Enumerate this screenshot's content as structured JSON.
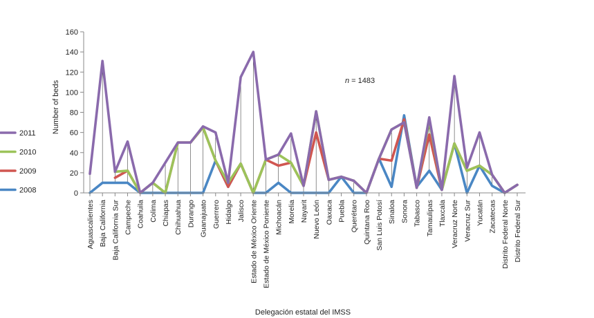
{
  "chart_data": {
    "type": "line",
    "title": "",
    "xlabel": "Delegación estatal del IMSS",
    "ylabel": "Number of beds",
    "ylim": [
      0,
      160
    ],
    "yticks": [
      0,
      20,
      40,
      60,
      80,
      100,
      120,
      140,
      160
    ],
    "annotation": {
      "italic": "n",
      "text": " = 1483"
    },
    "legend_position": "left",
    "grid": false,
    "categories": [
      "Aguascalientes",
      "Baja California",
      "Baja California Sur",
      "Campeche",
      "Coahuila",
      "Colima",
      "Chiapas",
      "Chihuahua",
      "Durango",
      "Guanajuato",
      "Guerrero",
      "Hidalgo",
      "Jalisco",
      "Estado de México Oriente",
      "Estado de México Poniente",
      "Michoacán",
      "Morelia",
      "Nayarit",
      "Nuevo León",
      "Oaxaca",
      "Puebla",
      "Querétaro",
      "Quintana Roo",
      "San Luis Potosí",
      "Sinaloa",
      "Sonora",
      "Tabasco",
      "Tamaulipas",
      "Tlaxcala",
      "Veracruz Norte",
      "Veracruz Sur",
      "Yucatán",
      "Zacatecas",
      "Distrito Federal Norte",
      "Distrito Federal Sur"
    ],
    "series": [
      {
        "name": "2008",
        "color": "#4a87c4",
        "values": [
          0,
          10,
          10,
          10,
          0,
          0,
          0,
          0,
          0,
          0,
          32,
          6,
          29,
          0,
          0,
          10,
          0,
          0,
          0,
          0,
          16,
          0,
          0,
          34,
          6,
          77,
          6,
          22,
          3,
          49,
          0,
          27,
          7,
          0,
          8
        ]
      },
      {
        "name": "2009",
        "color": "#d05651",
        "values": [
          null,
          null,
          15,
          22,
          0,
          10,
          0,
          50,
          50,
          65,
          32,
          6,
          29,
          0,
          33,
          27,
          30,
          7,
          60,
          13,
          16,
          12,
          0,
          34,
          32,
          73,
          5,
          58,
          3,
          49,
          22,
          27,
          18,
          0,
          8
        ]
      },
      {
        "name": "2010",
        "color": "#9cc35a",
        "values": [
          null,
          null,
          21,
          22,
          0,
          10,
          0,
          50,
          50,
          65,
          32,
          10,
          29,
          0,
          33,
          38,
          30,
          7,
          81,
          13,
          16,
          12,
          0,
          34,
          63,
          70,
          5,
          72,
          3,
          49,
          22,
          27,
          18,
          0,
          8
        ]
      },
      {
        "name": "2011",
        "color": "#8a6aac",
        "values": [
          19,
          131,
          21,
          51,
          0,
          10,
          30,
          50,
          50,
          66,
          60,
          10,
          115,
          140,
          33,
          38,
          59,
          7,
          81,
          13,
          16,
          12,
          0,
          34,
          63,
          70,
          5,
          75,
          3,
          116,
          25,
          60,
          18,
          0,
          8
        ]
      }
    ]
  }
}
